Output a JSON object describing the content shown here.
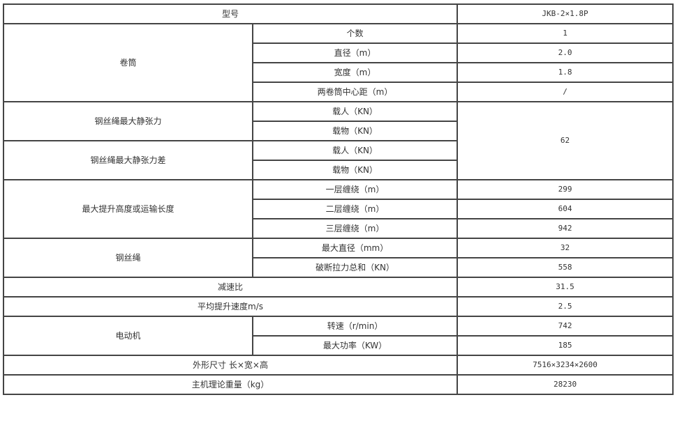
{
  "model": {
    "label": "型号",
    "value": "JKB-2×1.8P"
  },
  "drum": {
    "label": "卷筒",
    "rows": [
      {
        "label": "个数",
        "value": "1"
      },
      {
        "label": "直径（m）",
        "value": "2.0"
      },
      {
        "label": "宽度（m）",
        "value": "1.8"
      },
      {
        "label": "两卷筒中心距（m）",
        "value": "/"
      }
    ]
  },
  "max_static_tension": {
    "label": "钢丝绳最大静张力",
    "rows": [
      {
        "label": "载人（KN）"
      },
      {
        "label": "载物（KN）"
      }
    ]
  },
  "max_static_tension_diff": {
    "label": "钢丝绳最大静张力差",
    "rows": [
      {
        "label": "载人（KN）"
      },
      {
        "label": "载物（KN）"
      }
    ]
  },
  "tension_value": "62",
  "max_lift": {
    "label": "最大提升高度或运输长度",
    "rows": [
      {
        "label": "一层缠绕（m）",
        "value": "299"
      },
      {
        "label": "二层缠绕（m）",
        "value": "604"
      },
      {
        "label": "三层缠绕（m）",
        "value": "942"
      }
    ]
  },
  "rope": {
    "label": "钢丝绳",
    "rows": [
      {
        "label": "最大直径（mm）",
        "value": "32"
      },
      {
        "label": "破断拉力总和（KN）",
        "value": "558"
      }
    ]
  },
  "ratio": {
    "label": "减速比",
    "value": "31.5"
  },
  "speed": {
    "label": "平均提升速度m/s",
    "value": "2.5"
  },
  "motor": {
    "label": "电动机",
    "rows": [
      {
        "label": "转速（r/min）",
        "value": "742"
      },
      {
        "label": "最大功率（KW）",
        "value": "185"
      }
    ]
  },
  "dimensions": {
    "label": "外形尺寸 长×宽×高",
    "value": "7516×3234×2600"
  },
  "weight": {
    "label": "主机理论重量（kg）",
    "value": "28230"
  }
}
